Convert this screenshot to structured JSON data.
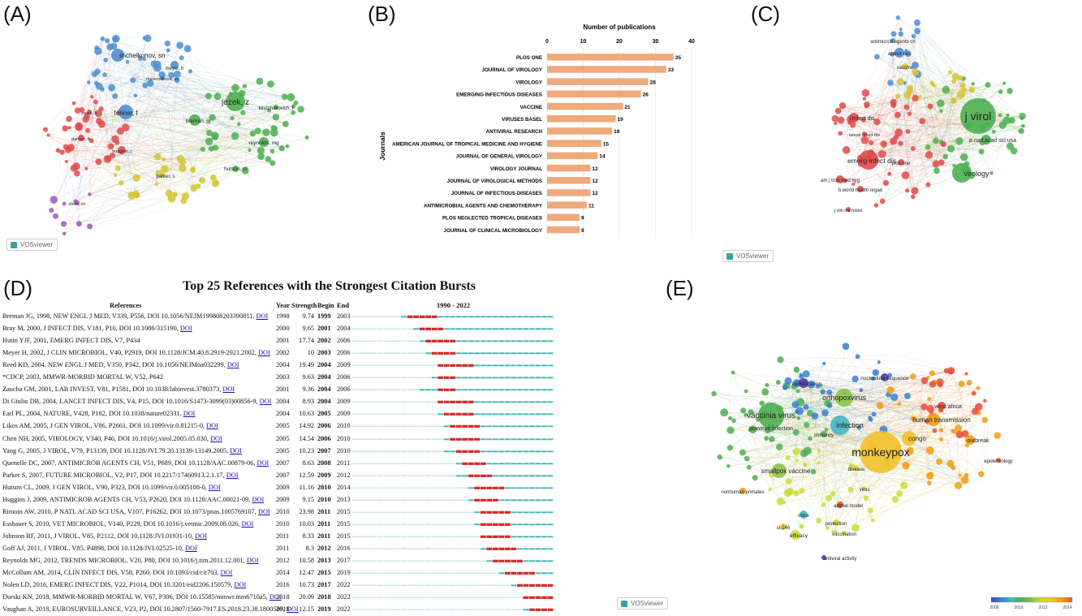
{
  "panel_labels": {
    "A": "(A)",
    "B": "(B)",
    "C": "(C)",
    "D": "(D)",
    "E": "(E)"
  },
  "vosviewer_label": "VOSviewer",
  "chart_data": [
    {
      "panel": "A",
      "type": "network",
      "node_labels": [
        "shchelkunov, sn",
        "meyer, h",
        "jezek, z",
        "fenner, f",
        "breman, jg",
        "reynolds, mg",
        "hutson, cl",
        "parker, s",
        "kindzhakovich, f",
        "moss, b",
        "huggins, j",
        "damon, ik",
        "marennikova, ss",
        "chen, nh"
      ],
      "clusters": [
        {
          "color": "#4e8fd1"
        },
        {
          "color": "#4caf50"
        },
        {
          "color": "#e04b4b"
        },
        {
          "color": "#d4c434"
        },
        {
          "color": "#9b59b6"
        }
      ]
    },
    {
      "panel": "B",
      "type": "bar",
      "orientation": "horizontal",
      "title": "Number of publications",
      "ylabel": "Journals",
      "xlim": [
        0,
        40
      ],
      "xticks": [
        0,
        10,
        20,
        30,
        40
      ],
      "bar_color": "#eeaa7b",
      "categories": [
        "PLOS ONE",
        "JOURNAL OF VIROLOGY",
        "VIROLOGY",
        "EMERGING INFECTIOUS DISEASES",
        "VACCINE",
        "VIRUSES BASEL",
        "ANTIVIRAL RESEARCH",
        "AMERICAN JOURNAL OF TROPICAL MEDICINE AND HYGIENE",
        "JOURNAL OF GENERAL VIROLOGY",
        "VIROLOGY JOURNAL",
        "JOURNAL OF VIROLOGICAL METHODS",
        "JOURNAL OF INFECTIOUS DISEASES",
        "ANTIMICROBIAL AGENTS AND CHEMOTHERAPY",
        "PLOS NEGLECTED TROPICAL DISEASES",
        "JOURNAL OF CLINICAL MICROBIOLOGY"
      ],
      "values": [
        35,
        33,
        28,
        26,
        21,
        19,
        18,
        15,
        14,
        12,
        12,
        12,
        11,
        9,
        9
      ]
    },
    {
      "panel": "C",
      "type": "network",
      "node_labels": [
        "j virol",
        "virology",
        "p natl acad sci usa",
        "emerg infect dis",
        "j infect dis",
        "antivir res",
        "vaccine",
        "antimicrob agents ch",
        "am j trop med hyg",
        "b world health organ",
        "plos one",
        "j clin microbiol",
        "lancet infect dis"
      ],
      "clusters": [
        {
          "color": "#4caf50"
        },
        {
          "color": "#e04b4b"
        },
        {
          "color": "#4e8fd1"
        },
        {
          "color": "#d4c434"
        }
      ]
    },
    {
      "panel": "D",
      "type": "table",
      "title": "Top 25 References with the Strongest Citation Bursts",
      "columns": [
        "References",
        "Year",
        "Strength",
        "Begin",
        "End",
        "1990 - 2022"
      ],
      "range": [
        1990,
        2022
      ],
      "rows": [
        {
          "ref": "Breman JG, 1998, NEW ENGL J MED, V339, P556, DOI 10.1056/NEJM199808203390811,",
          "doi": true,
          "year": 1998,
          "strength": "9.74",
          "begin": 1999,
          "end": 2003
        },
        {
          "ref": "Bray M, 2000, J INFECT DIS, V181, P10, DOI 10.1086/315190,",
          "doi": true,
          "year": 2000,
          "strength": "9.65",
          "begin": 2001,
          "end": 2004
        },
        {
          "ref": "Hutin YJF, 2001, EMERG INFECT DIS, V7, P434",
          "doi": false,
          "year": 2001,
          "strength": "17.74",
          "begin": 2002,
          "end": 2006
        },
        {
          "ref": "Meyer H, 2002, J CLIN MICROBIOL, V40, P2919, DOI 10.1128/JCM.40.8.2919-2921.2002,",
          "doi": true,
          "year": 2002,
          "strength": "10",
          "begin": 2003,
          "end": 2006
        },
        {
          "ref": "Reed KD, 2004, NEW ENGL J MED, V350, P342, DOI 10.1056/NEJMoa032299,",
          "doi": true,
          "year": 2004,
          "strength": "19.49",
          "begin": 2004,
          "end": 2009
        },
        {
          "ref": "*CDCP, 2003, MMWR-MORBID MORTAL W, V52, P642",
          "doi": false,
          "year": 2003,
          "strength": "9.63",
          "begin": 2004,
          "end": 2006
        },
        {
          "ref": "Zaucha GM, 2001, LAB INVEST, V81, P1581, DOI 10.1038/labinvest.3780373,",
          "doi": true,
          "year": 2001,
          "strength": "9.36",
          "begin": 2004,
          "end": 2006
        },
        {
          "ref": "Di Giulio DB, 2004, LANCET INFECT DIS, V4, P15, DOI 10.1016/S1473-3099(03)00856-9,",
          "doi": true,
          "year": 2004,
          "strength": "8.93",
          "begin": 2004,
          "end": 2009
        },
        {
          "ref": "Earl PL, 2004, NATURE, V428, P182, DOI 10.1038/nature02331,",
          "doi": true,
          "year": 2004,
          "strength": "10.63",
          "begin": 2005,
          "end": 2009
        },
        {
          "ref": "Likos AM, 2005, J GEN VIROL, V86, P2661, DOI 10.1099/vir.0.81215-0,",
          "doi": true,
          "year": 2005,
          "strength": "14.92",
          "begin": 2006,
          "end": 2010
        },
        {
          "ref": "Chen NH, 2005, VIROLOGY, V340, P46, DOI 10.1016/j.virol.2005.05.030,",
          "doi": true,
          "year": 2005,
          "strength": "14.54",
          "begin": 2006,
          "end": 2010
        },
        {
          "ref": "Yang G, 2005, J VIROL, V79, P13139, DOI 10.1128/JVI.79.20.13139-13149.2005,",
          "doi": true,
          "year": 2005,
          "strength": "10.23",
          "begin": 2007,
          "end": 2010
        },
        {
          "ref": "Quenelle DC, 2007, ANTIMICROB AGENTS CH, V51, P689, DOI 10.1128/AAC.00879-06,",
          "doi": true,
          "year": 2007,
          "strength": "8.63",
          "begin": 2008,
          "end": 2011
        },
        {
          "ref": "Parker S, 2007, FUTURE MICROBIOL, V2, P17, DOI 10.2217/17460913.2.1.17,",
          "doi": true,
          "year": 2007,
          "strength": "12.59",
          "begin": 2009,
          "end": 2012
        },
        {
          "ref": "Hutson CL, 2009, J GEN VIROL, V90, P323, DOI 10.1099/vir.0.005108-0,",
          "doi": true,
          "year": 2009,
          "strength": "11.16",
          "begin": 2010,
          "end": 2014
        },
        {
          "ref": "Huggins J, 2009, ANTIMICROB AGENTS CH, V53, P2620, DOI 10.1128/AAC.00021-09,",
          "doi": true,
          "year": 2009,
          "strength": "9.15",
          "begin": 2010,
          "end": 2013
        },
        {
          "ref": "Rimoin AW, 2010, P NATL ACAD SCI USA, V107, P16262, DOI 10.1073/pnas.1005769107,",
          "doi": true,
          "year": 2010,
          "strength": "23.98",
          "begin": 2011,
          "end": 2015
        },
        {
          "ref": "Essbauer S, 2010, VET MICROBIOL, V140, P229, DOI 10.1016/j.vetmic.2009.08.026,",
          "doi": true,
          "year": 2010,
          "strength": "10.03",
          "begin": 2011,
          "end": 2015
        },
        {
          "ref": "Johnson RF, 2011, J VIROL, V85, P2112, DOI 10.1128/JVI.01931-10,",
          "doi": true,
          "year": 2011,
          "strength": "8.33",
          "begin": 2011,
          "end": 2015
        },
        {
          "ref": "Goff AJ, 2011, J VIROL, V85, P4898, DOI 10.1128/JVI.02525-10,",
          "doi": true,
          "year": 2011,
          "strength": "8.3",
          "begin": 2012,
          "end": 2016
        },
        {
          "ref": "Reynolds MG, 2012, TRENDS MICROBIOL, V20, P80, DOI 10.1016/j.tim.2011.12.001,",
          "doi": true,
          "year": 2012,
          "strength": "10.58",
          "begin": 2013,
          "end": 2017
        },
        {
          "ref": "McCollum AM, 2014, CLIN INFECT DIS, V58, P260, DOI 10.1093/cid/cit703,",
          "doi": true,
          "year": 2014,
          "strength": "12.47",
          "begin": 2015,
          "end": 2019
        },
        {
          "ref": "Nolen LD, 2016, EMERG INFECT DIS, V22, P1014, DOI 10.3201/eid2206.150579,",
          "doi": true,
          "year": 2016,
          "strength": "10.73",
          "begin": 2017,
          "end": 2022
        },
        {
          "ref": "Durski KN, 2018, MMWR-MORBID MORTAL W, V67, P306, DOI 10.15585/mmwr.mm6710a5,",
          "doi": true,
          "year": 2018,
          "strength": "20.09",
          "begin": 2018,
          "end": 2022
        },
        {
          "ref": "Vaughan A, 2018, EUROSURVEILLANCE, V23, P2, DOI 10.2807/1560-7917.ES.2018.23.38.1800509,",
          "doi": true,
          "year": 2018,
          "strength": "12.15",
          "begin": 2019,
          "end": 2022
        }
      ],
      "doi_label": "DOI",
      "colors": {
        "burst": "#d62728",
        "active": "#4bb8b8",
        "inactive": "#c8e6e6"
      }
    },
    {
      "panel": "E",
      "type": "network",
      "node_labels": [
        "monkeypox",
        "vaccinia virus",
        "orthopoxvirus",
        "infection",
        "poxvirus infection",
        "smallpox vaccine",
        "human transmission",
        "congo",
        "outbreak",
        "west africa",
        "identification",
        "nucleotide sequence",
        "animal model",
        "immunity",
        "efficacy",
        "protection",
        "mice",
        "st-246",
        "antiviral activity",
        "vaccination",
        "epidemiology",
        "disease",
        "virus",
        "nonhuman primates"
      ],
      "colorbar": {
        "min": "2008",
        "ticks": [
          "2008",
          "2010",
          "2012",
          "2014"
        ]
      }
    }
  ]
}
